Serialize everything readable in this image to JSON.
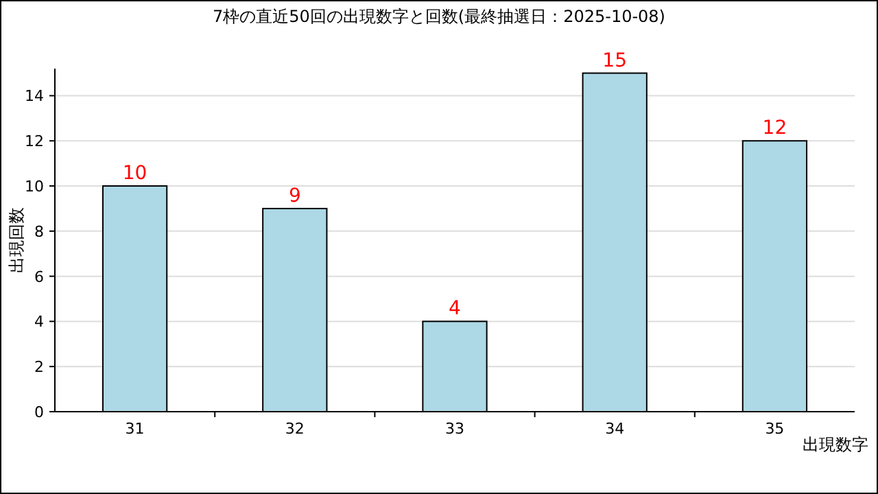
{
  "chart_data": {
    "type": "bar",
    "title": "7枠の直近50回の出現数字と回数(最終抽選日：2025-10-08)",
    "xlabel": "出現数字",
    "ylabel": "出現回数",
    "categories": [
      "31",
      "32",
      "33",
      "34",
      "35"
    ],
    "values": [
      10,
      9,
      4,
      15,
      12
    ],
    "color": "#add8e6",
    "ylim": [
      0,
      15.2
    ],
    "yticks": [
      0,
      2,
      4,
      6,
      8,
      10,
      12,
      14
    ],
    "grid": "y",
    "data_labels": true
  }
}
